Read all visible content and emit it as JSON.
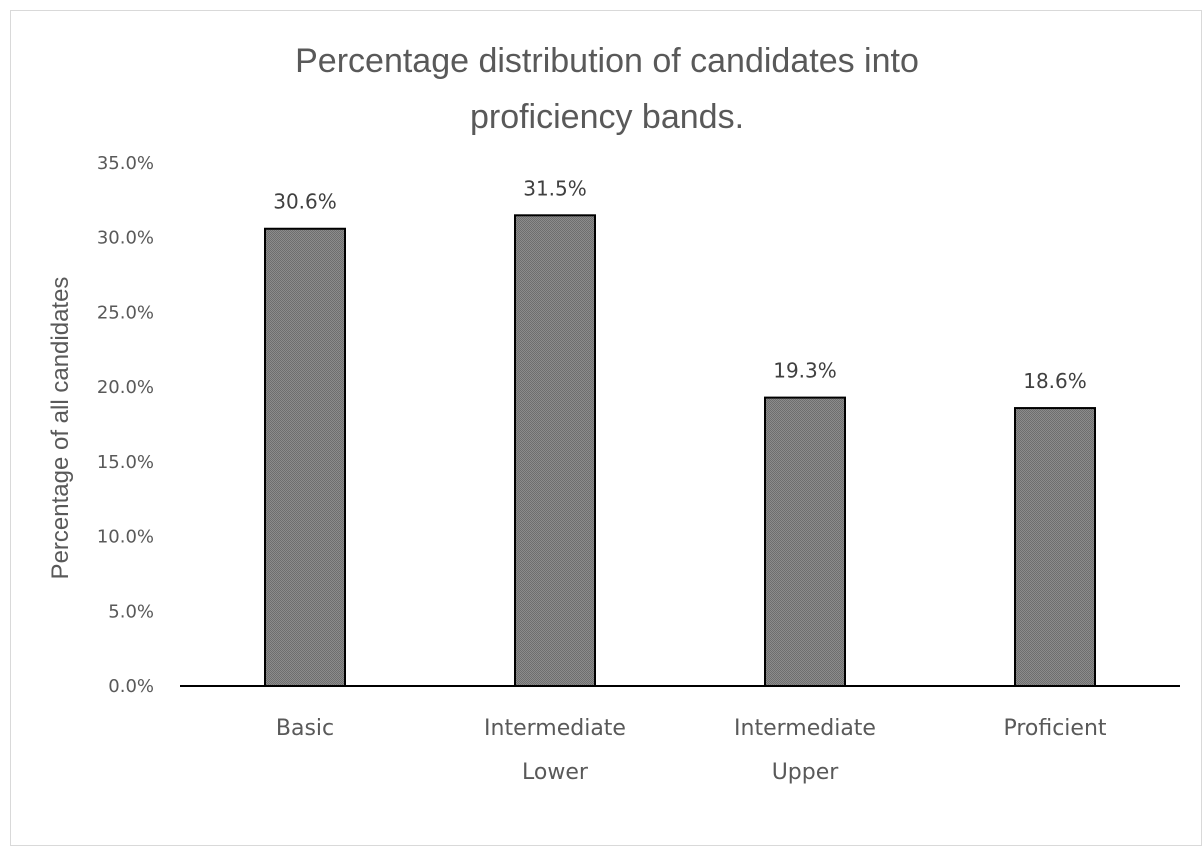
{
  "chart_data": {
    "type": "bar",
    "title": "Percentage distribution of candidates into proficiency bands.",
    "title_lines": [
      "Percentage distribution of candidates into",
      "proficiency bands."
    ],
    "xlabel": "",
    "ylabel": "Percentage of all candidates",
    "categories": [
      "Basic",
      "Intermediate Lower",
      "Intermediate Upper",
      "Proficient"
    ],
    "category_lines": [
      [
        "Basic"
      ],
      [
        "Intermediate",
        "Lower"
      ],
      [
        "Intermediate",
        "Upper"
      ],
      [
        "Proficient"
      ]
    ],
    "values": [
      30.6,
      31.5,
      19.3,
      18.6
    ],
    "data_labels": [
      "30.6%",
      "31.5%",
      "19.3%",
      "18.6%"
    ],
    "ylim": [
      0,
      35
    ],
    "yticks": [
      0,
      5,
      10,
      15,
      20,
      25,
      30,
      35
    ],
    "ytick_labels": [
      "0.0%",
      "5.0%",
      "10.0%",
      "15.0%",
      "20.0%",
      "25.0%",
      "30.0%",
      "35.0%"
    ],
    "grid": false,
    "legend": "none",
    "bar_color": "#808080",
    "bar_pattern": "fine-hatch-gray"
  }
}
